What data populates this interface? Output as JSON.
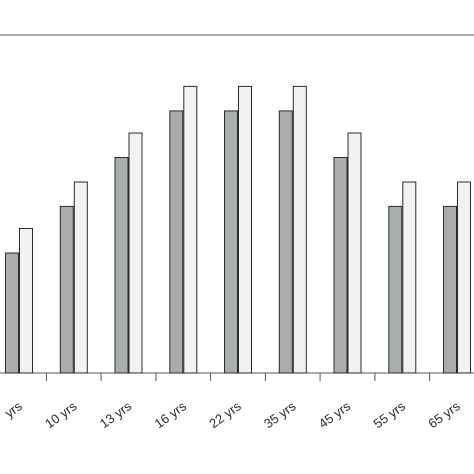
{
  "chart_data": {
    "type": "bar",
    "title": "",
    "xlabel": "",
    "ylabel": "",
    "categories": [
      "yrs",
      "10 yrs",
      "13 yrs",
      "16 yrs",
      "22 yrs",
      "35 yrs",
      "45 yrs",
      "55 yrs",
      "65 yrs"
    ],
    "series": [
      {
        "values": [
          49,
          68,
          88,
          107,
          107,
          107,
          88,
          68,
          68
        ]
      },
      {
        "values": [
          59,
          78,
          98,
          117,
          117,
          117,
          98,
          78,
          78
        ]
      }
    ],
    "ylim": [
      0,
      138
    ],
    "grid": false,
    "colors": {
      "series": [
        "#a9aeaa",
        "#f1f2f1"
      ],
      "stroke": "#2b2b2b",
      "axis": "#555555",
      "text": "#2a2a2a"
    }
  }
}
